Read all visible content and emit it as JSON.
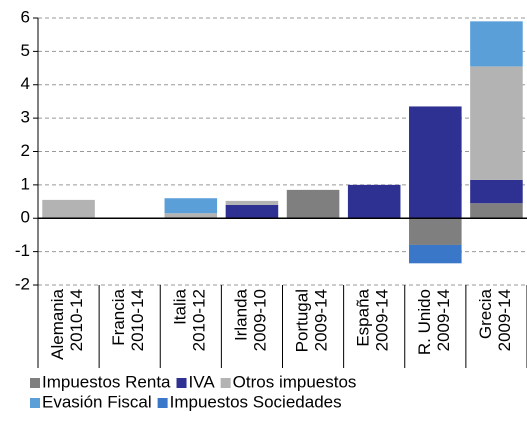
{
  "chart_data": {
    "type": "stacked_bar",
    "categories": [
      [
        "Alemania",
        "2010-14"
      ],
      [
        "Francia",
        "2010-14"
      ],
      [
        "Italia",
        "2010-12"
      ],
      [
        "Irlanda",
        "2009-10"
      ],
      [
        "Portugal",
        "2009-14"
      ],
      [
        "España",
        "2009-14"
      ],
      [
        "R. Unido",
        "2009-14"
      ],
      [
        "Grecia",
        "2009-14"
      ]
    ],
    "series": [
      {
        "name": "Impuestos Renta",
        "color": "#7f7f7f",
        "values": [
          0,
          0,
          0,
          0,
          0.85,
          0,
          -0.8,
          0.45
        ]
      },
      {
        "name": "IVA",
        "color": "#2e3192",
        "values": [
          0,
          0,
          0,
          0.4,
          0,
          1.0,
          3.35,
          0.7
        ]
      },
      {
        "name": "Otros impuestos",
        "color": "#b3b3b3",
        "values": [
          0.55,
          0,
          0.15,
          0.12,
          0,
          0,
          0,
          3.4
        ]
      },
      {
        "name": "Evasión Fiscal",
        "color": "#5b9fd9",
        "values": [
          0,
          0,
          0.45,
          0,
          0,
          0,
          0,
          1.35
        ]
      },
      {
        "name": "Impuestos Sociedades",
        "color": "#3a77c8",
        "values": [
          0,
          0,
          0,
          0,
          0,
          0,
          -0.55,
          0
        ]
      }
    ],
    "ylim": [
      -2,
      6
    ],
    "yticks": [
      -2,
      -1,
      0,
      1,
      2,
      3,
      4,
      5,
      6
    ],
    "grid": true
  }
}
